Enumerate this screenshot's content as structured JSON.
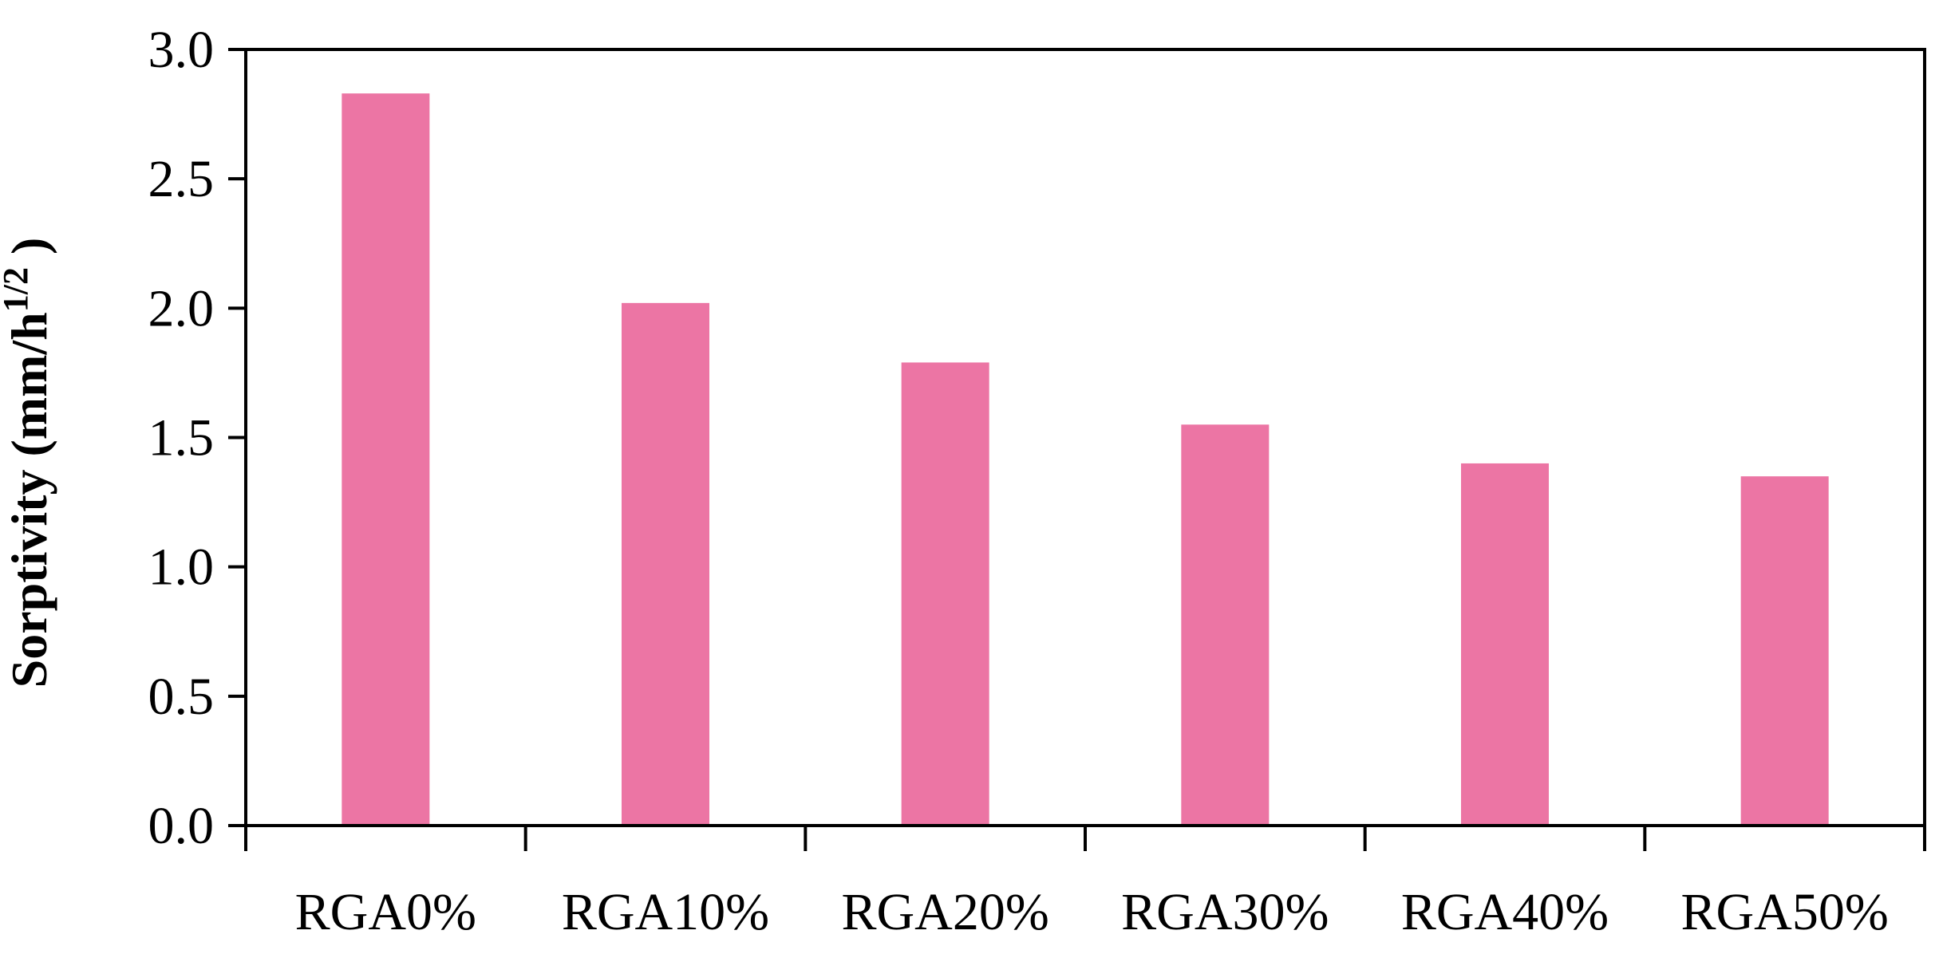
{
  "chart_data": {
    "type": "bar",
    "title": "",
    "xlabel": "",
    "ylabel": {
      "main": "Sorptivity (mm/h",
      "superscript": "1/2",
      "close": " )"
    },
    "categories": [
      "RGA0%",
      "RGA10%",
      "RGA20%",
      "RGA30%",
      "RGA40%",
      "RGA50%"
    ],
    "series": [
      {
        "values": [
          2.83,
          2.02,
          1.79,
          1.55,
          1.4,
          1.35
        ]
      }
    ],
    "ylim": [
      0,
      3.0
    ],
    "yticks": [
      "0.0",
      "0.5",
      "1.0",
      "1.5",
      "2.0",
      "2.5",
      "3.0"
    ],
    "grid": false,
    "legend": "none",
    "bar_color": "#EC75A4",
    "axis_color": "#000000"
  }
}
